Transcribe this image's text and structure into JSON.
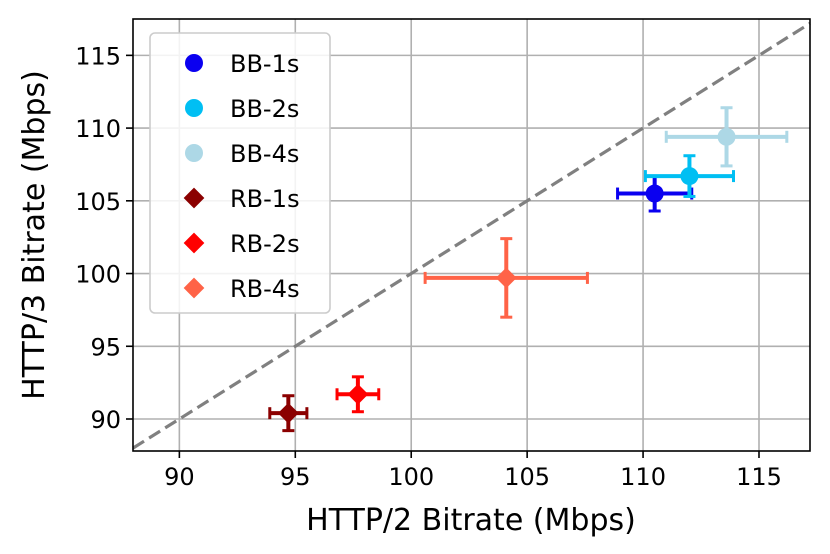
{
  "chart_data": {
    "type": "scatter",
    "xlabel": "HTTP/2 Bitrate (Mbps)",
    "ylabel": "HTTP/3 Bitrate (Mbps)",
    "xlim": [
      88,
      117.2
    ],
    "ylim": [
      87.8,
      117.5
    ],
    "xticks": [
      90,
      95,
      100,
      105,
      110,
      115
    ],
    "yticks": [
      90,
      95,
      100,
      105,
      110,
      115
    ],
    "grid": true,
    "legend_position": "top-left",
    "reference_line": {
      "style": "dashed",
      "color": "#808080",
      "slope": 1
    },
    "series": [
      {
        "name": "BB-1s",
        "marker": "circle",
        "color": "#0a00f0",
        "x": 110.5,
        "y": 105.5,
        "xerr": 1.6,
        "yerr": 1.2
      },
      {
        "name": "BB-2s",
        "marker": "circle",
        "color": "#00bff3",
        "x": 112.0,
        "y": 106.7,
        "xerr": 1.9,
        "yerr": 1.4
      },
      {
        "name": "BB-4s",
        "marker": "circle",
        "color": "#add8e6",
        "x": 113.6,
        "y": 109.4,
        "xerr": 2.6,
        "yerr": 2.0
      },
      {
        "name": "RB-1s",
        "marker": "diamond",
        "color": "#8b0000",
        "x": 94.7,
        "y": 90.4,
        "xerr": 0.8,
        "yerr": 1.2
      },
      {
        "name": "RB-2s",
        "marker": "diamond",
        "color": "#ff0000",
        "x": 97.7,
        "y": 91.7,
        "xerr": 0.9,
        "yerr": 1.2
      },
      {
        "name": "RB-4s",
        "marker": "diamond",
        "color": "#ff6347",
        "x": 104.1,
        "y": 99.7,
        "xerr": 3.5,
        "yerr": 2.7
      }
    ]
  }
}
